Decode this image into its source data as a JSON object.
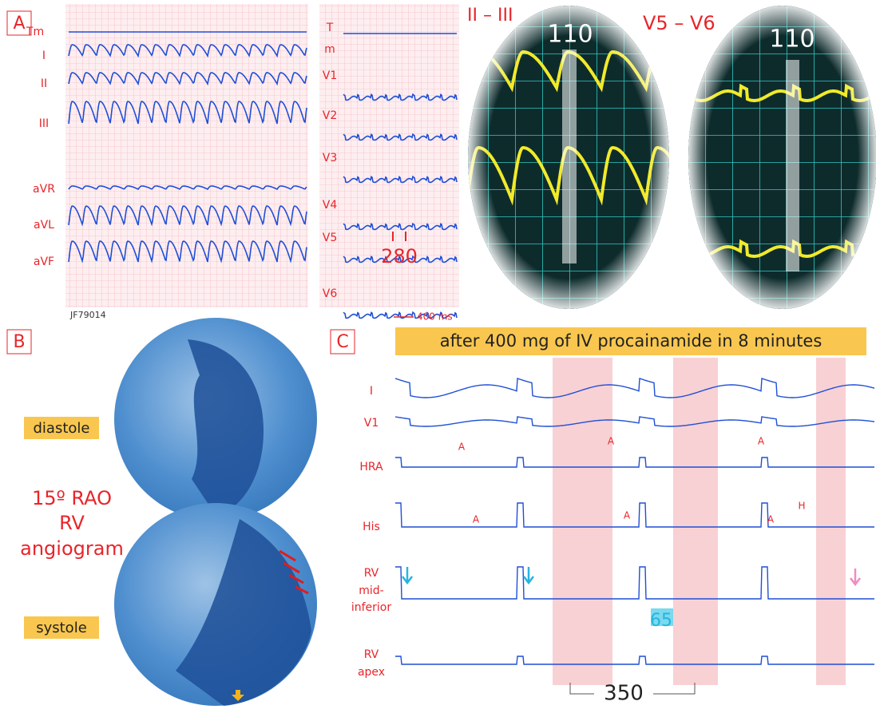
{
  "panel_a": {
    "label": "A",
    "leads_left": [
      "Tm",
      "I",
      "II",
      "III",
      "aVR",
      "aVL",
      "aVF"
    ],
    "code": "JF79014",
    "leads_right": [
      "T",
      "m",
      "V1",
      "V2",
      "V3",
      "V4",
      "V5",
      "V6"
    ],
    "interval": "280",
    "scale": "400 ms",
    "zoom_left": {
      "title": "II – III",
      "interval": "110"
    },
    "zoom_right": {
      "title": "V5 – V6",
      "interval": "110"
    }
  },
  "panel_b": {
    "label": "B",
    "diastole": "diastole",
    "systole": "systole",
    "caption": [
      "15º RAO",
      "RV",
      "angiogram"
    ]
  },
  "panel_c": {
    "label": "C",
    "banner": "after 400 mg of IV procainamide in 8 minutes",
    "channels": [
      [
        "I"
      ],
      [
        "V1"
      ],
      [
        "HRA"
      ],
      [
        "His"
      ],
      [
        "RV",
        "mid-",
        "inferior"
      ],
      [
        "RV",
        "apex"
      ]
    ],
    "markers": [
      "A",
      "A",
      "A",
      "A",
      "A",
      "A",
      "H"
    ],
    "interval_small": "65",
    "interval_large": "350"
  }
}
